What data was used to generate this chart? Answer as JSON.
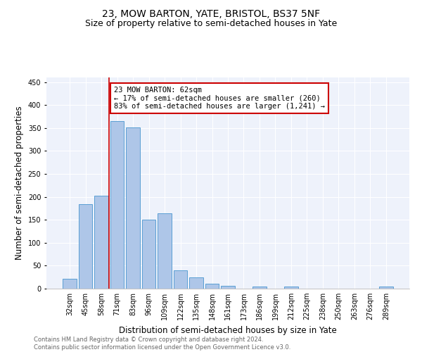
{
  "title": "23, MOW BARTON, YATE, BRISTOL, BS37 5NF",
  "subtitle": "Size of property relative to semi-detached houses in Yate",
  "xlabel": "Distribution of semi-detached houses by size in Yate",
  "ylabel": "Number of semi-detached properties",
  "categories": [
    "32sqm",
    "45sqm",
    "58sqm",
    "71sqm",
    "83sqm",
    "96sqm",
    "109sqm",
    "122sqm",
    "135sqm",
    "148sqm",
    "161sqm",
    "173sqm",
    "186sqm",
    "199sqm",
    "212sqm",
    "225sqm",
    "238sqm",
    "250sqm",
    "263sqm",
    "276sqm",
    "289sqm"
  ],
  "values": [
    22,
    184,
    202,
    365,
    351,
    150,
    164,
    40,
    25,
    10,
    6,
    0,
    5,
    0,
    5,
    0,
    0,
    0,
    0,
    0,
    5
  ],
  "bar_color": "#aec6e8",
  "bar_edge_color": "#5a9fd4",
  "property_label": "23 MOW BARTON: 62sqm",
  "pct_smaller": 17,
  "pct_larger": 83,
  "count_smaller": 260,
  "count_larger": 1241,
  "vline_x_index": 2,
  "vline_color": "#cc0000",
  "annotation_box_color": "#cc0000",
  "ylim": [
    0,
    460
  ],
  "yticks": [
    0,
    50,
    100,
    150,
    200,
    250,
    300,
    350,
    400,
    450
  ],
  "bg_color": "#eef2fb",
  "footer_text": "Contains HM Land Registry data © Crown copyright and database right 2024.\nContains public sector information licensed under the Open Government Licence v3.0.",
  "title_fontsize": 10,
  "subtitle_fontsize": 9,
  "axis_label_fontsize": 8.5,
  "tick_fontsize": 7,
  "annotation_fontsize": 7.5,
  "footer_fontsize": 6
}
